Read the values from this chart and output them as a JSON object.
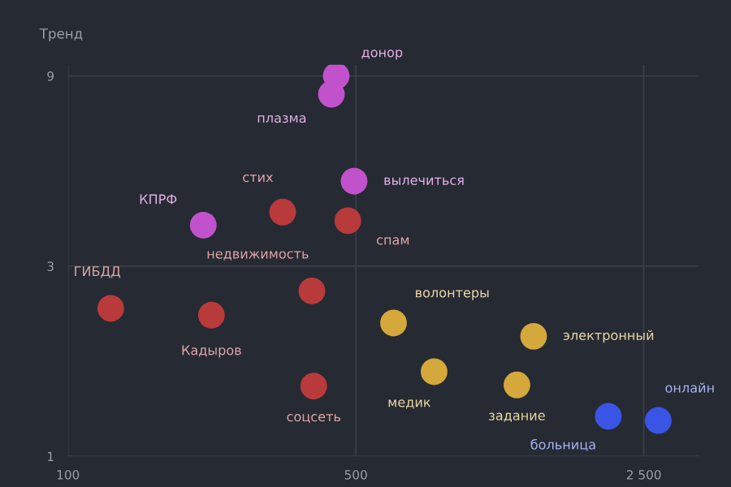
{
  "chart_data": {
    "type": "scatter",
    "ylabel": "Тренд",
    "log": "xy",
    "grid": true,
    "marker": "circle",
    "xlim": [
      100,
      3400
    ],
    "xticks": [
      100,
      500,
      {
        "value": 2500,
        "label": "2 500"
      }
    ],
    "ylim": [
      1,
      9.6
    ],
    "yticks": [
      1,
      3,
      9
    ],
    "series": [
      {
        "color": "#c252cc",
        "x": [
          448,
          436,
          495,
          213
        ],
        "values": [
          9.0,
          8.1,
          4.9,
          3.8
        ]
      },
      {
        "color": "#b83a3a",
        "x": [
          332,
          478,
          391,
          127,
          223,
          395
        ],
        "values": [
          4.1,
          3.9,
          2.6,
          2.35,
          2.26,
          1.5
        ]
      },
      {
        "color": "#d4a83a",
        "x": [
          617,
          1350,
          774,
          1230
        ],
        "values": [
          2.16,
          2.0,
          1.63,
          1.51
        ]
      },
      {
        "color": "#3a55e6",
        "x": [
          2050,
          2710
        ],
        "values": [
          1.26,
          1.23
        ]
      }
    ],
    "annotations": [
      {
        "text": "донор",
        "x": 448,
        "y": 9.0
      },
      {
        "text": "плазма",
        "x": 436,
        "y": 8.1
      },
      {
        "text": "вылечиться",
        "x": 495,
        "y": 4.9
      },
      {
        "text": "КПРФ",
        "x": 213,
        "y": 3.8
      },
      {
        "text": "стих",
        "x": 332,
        "y": 4.1
      },
      {
        "text": "спам",
        "x": 478,
        "y": 3.9
      },
      {
        "text": "недвижимость",
        "x": 391,
        "y": 2.6
      },
      {
        "text": "ГИБДД",
        "x": 127,
        "y": 2.35
      },
      {
        "text": "Кадыров",
        "x": 223,
        "y": 2.26
      },
      {
        "text": "соцсеть",
        "x": 395,
        "y": 1.5
      },
      {
        "text": "волонтеры",
        "x": 617,
        "y": 2.16
      },
      {
        "text": "электронный",
        "x": 1350,
        "y": 2.0
      },
      {
        "text": "медик",
        "x": 774,
        "y": 1.63
      },
      {
        "text": "задание",
        "x": 1230,
        "y": 1.51
      },
      {
        "text": "больница",
        "x": 2050,
        "y": 1.26
      },
      {
        "text": "онлайн",
        "x": 2710,
        "y": 1.23
      }
    ]
  }
}
